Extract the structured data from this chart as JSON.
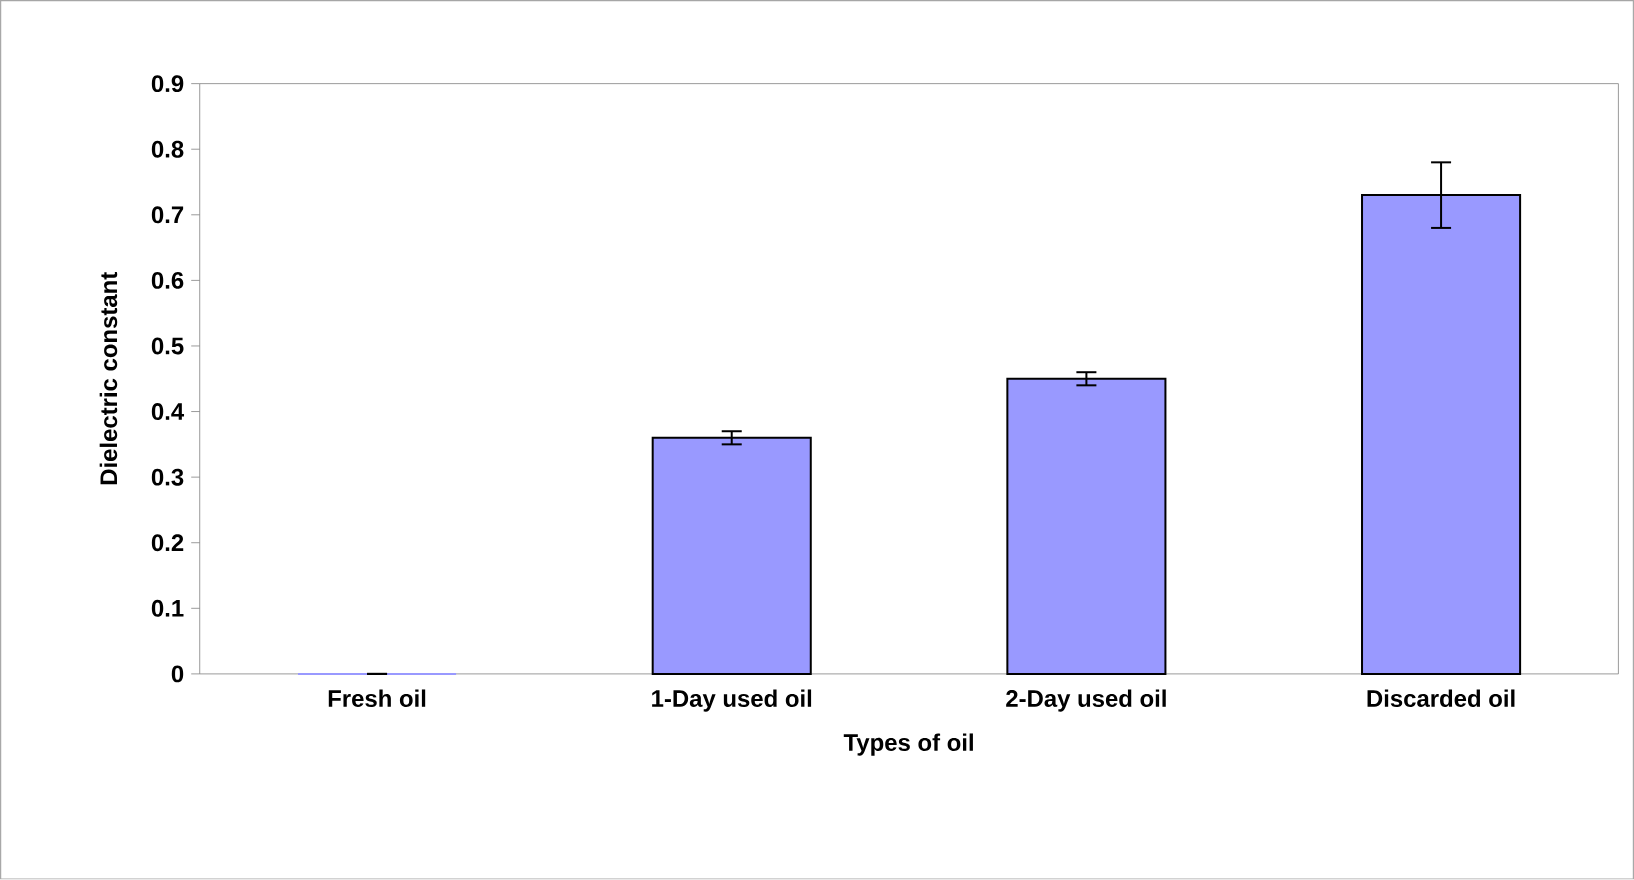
{
  "chart_data": {
    "type": "bar",
    "xlabel": "Types of oil",
    "ylabel": "Dielectric constant",
    "categories": [
      "Fresh oil",
      "1-Day used oil",
      "2-Day used oil",
      "Discarded oil"
    ],
    "values": [
      0,
      0.36,
      0.45,
      0.73
    ],
    "errors": [
      0,
      0.01,
      0.01,
      0.05
    ],
    "color": "#9999ff",
    "ylim": [
      0,
      0.9
    ],
    "yticks": [
      0,
      0.1,
      0.2,
      0.3,
      0.4,
      0.5,
      0.6,
      0.7,
      0.8,
      0.9
    ]
  }
}
